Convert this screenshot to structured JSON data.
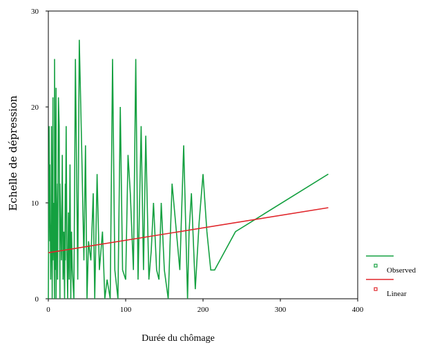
{
  "chart_data": {
    "type": "line",
    "title": "",
    "xlabel": "Durée du chômage",
    "ylabel": "Echelle de dépression",
    "xlim": [
      0,
      400
    ],
    "ylim": [
      0,
      30
    ],
    "xticks": [
      0,
      100,
      200,
      300,
      400
    ],
    "yticks": [
      0,
      10,
      20,
      30
    ],
    "grid": false,
    "legend_position": "bottom-right",
    "series": [
      {
        "name": "Observed",
        "color": "#14a040",
        "x": [
          0,
          1,
          2,
          2,
          3,
          4,
          4,
          5,
          6,
          6,
          7,
          8,
          8,
          9,
          10,
          10,
          11,
          12,
          12,
          13,
          14,
          15,
          15,
          16,
          17,
          18,
          19,
          20,
          21,
          22,
          22,
          23,
          24,
          25,
          26,
          27,
          28,
          29,
          30,
          31,
          33,
          35,
          38,
          40,
          43,
          46,
          48,
          50,
          52,
          55,
          58,
          60,
          63,
          66,
          70,
          73,
          76,
          80,
          83,
          86,
          90,
          93,
          96,
          100,
          103,
          106,
          110,
          113,
          116,
          120,
          123,
          126,
          130,
          133,
          136,
          140,
          143,
          146,
          150,
          155,
          160,
          170,
          175,
          180,
          182,
          185,
          190,
          195,
          200,
          205,
          210,
          215,
          242,
          362
        ],
        "y": [
          0,
          18,
          6,
          14,
          2,
          8,
          18,
          0,
          21,
          4,
          10,
          0,
          25,
          3,
          22,
          0,
          8,
          12,
          2,
          21,
          18,
          0,
          12,
          8,
          4,
          15,
          2,
          7,
          0,
          12,
          4,
          18,
          5,
          0,
          9,
          2,
          14,
          0,
          7,
          3,
          0,
          25,
          2,
          27,
          16,
          4,
          16,
          0,
          6,
          4,
          11,
          0,
          13,
          3,
          7,
          0,
          2,
          0,
          25,
          3,
          0,
          20,
          3,
          2,
          15,
          11,
          3,
          25,
          2,
          18,
          3,
          17,
          2,
          5,
          10,
          3,
          2,
          10,
          3,
          0,
          12,
          3,
          16,
          0,
          7,
          11,
          1,
          8,
          13,
          7,
          3,
          3,
          7,
          13
        ]
      },
      {
        "name": "Linear",
        "color": "#e0252a",
        "x": [
          0,
          362
        ],
        "y": [
          4.8,
          9.5
        ]
      }
    ]
  }
}
